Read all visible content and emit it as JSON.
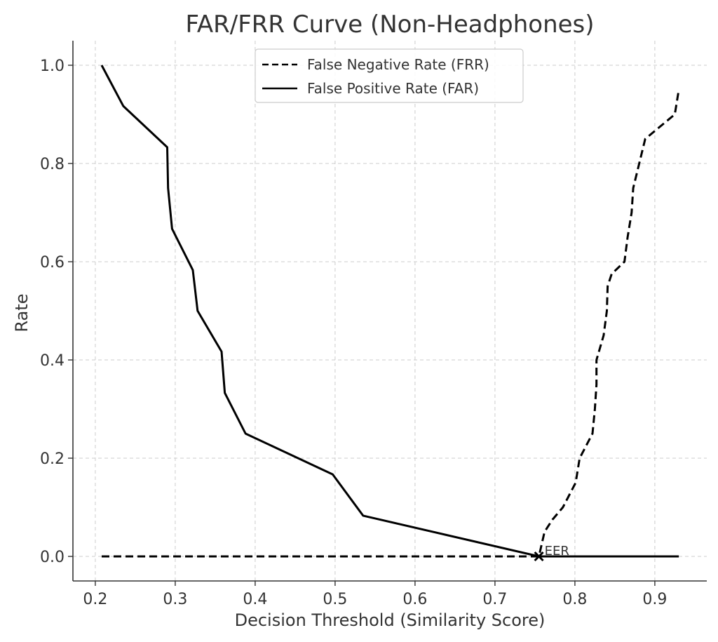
{
  "chart_data": {
    "type": "line",
    "title": "FAR/FRR Curve (Non-Headphones)",
    "xlabel": "Decision Threshold (Similarity Score)",
    "ylabel": "Rate",
    "xlim": [
      0.172,
      0.965
    ],
    "ylim": [
      -0.05,
      1.05
    ],
    "xticks": [
      0.2,
      0.3,
      0.4,
      0.5,
      0.6,
      0.7,
      0.8,
      0.9
    ],
    "yticks": [
      0.0,
      0.2,
      0.4,
      0.6,
      0.8,
      1.0
    ],
    "xtick_labels": [
      "0.2",
      "0.3",
      "0.4",
      "0.5",
      "0.6",
      "0.7",
      "0.8",
      "0.9"
    ],
    "ytick_labels": [
      "0.0",
      "0.2",
      "0.4",
      "0.6",
      "0.8",
      "1.0"
    ],
    "grid": true,
    "legend_position": "top-center",
    "series": [
      {
        "name": "False Negative Rate (FRR)",
        "style": "dashed",
        "color": "#000000",
        "x": [
          0.208,
          0.755,
          0.762,
          0.772,
          0.785,
          0.801,
          0.806,
          0.822,
          0.825,
          0.827,
          0.827,
          0.836,
          0.84,
          0.841,
          0.846,
          0.862,
          0.866,
          0.871,
          0.873,
          0.888,
          0.925,
          0.93
        ],
        "y": [
          0.0,
          0.0,
          0.05,
          0.075,
          0.1,
          0.15,
          0.2,
          0.25,
          0.3,
          0.35,
          0.4,
          0.45,
          0.5,
          0.55,
          0.575,
          0.6,
          0.65,
          0.7,
          0.75,
          0.85,
          0.9,
          0.95
        ]
      },
      {
        "name": "False Positive Rate (FAR)",
        "style": "solid",
        "color": "#000000",
        "x": [
          0.208,
          0.235,
          0.29,
          0.291,
          0.296,
          0.322,
          0.328,
          0.358,
          0.362,
          0.388,
          0.497,
          0.535,
          0.755,
          0.93
        ],
        "y": [
          1.0,
          0.917,
          0.833,
          0.75,
          0.667,
          0.583,
          0.5,
          0.417,
          0.333,
          0.25,
          0.167,
          0.083,
          0.0,
          0.0
        ]
      }
    ],
    "annotations": [
      {
        "label": "EER",
        "x": 0.755,
        "y": 0.0,
        "marker": "x"
      }
    ]
  }
}
